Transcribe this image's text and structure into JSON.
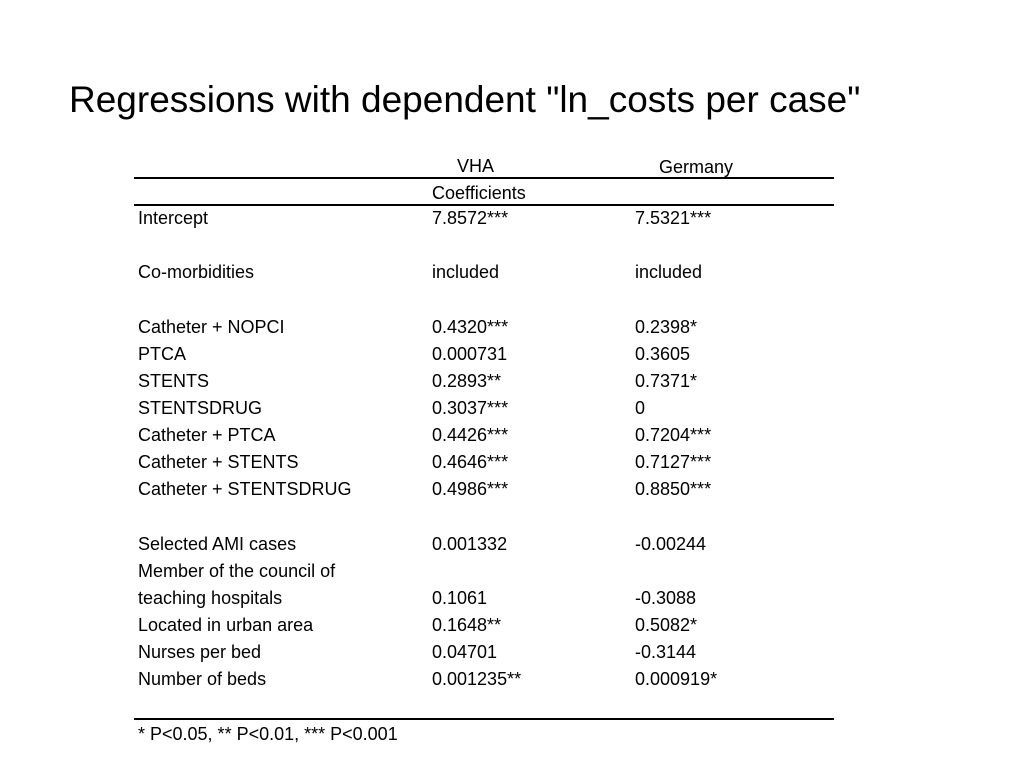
{
  "title": "Regressions with dependent \"ln_costs per case\"",
  "table": {
    "columns": {
      "vha": "VHA",
      "germany": "Germany"
    },
    "subheader": "Coefficients",
    "rows": [
      {
        "label": "Intercept",
        "vha": "7.8572***",
        "germany": "7.5321***"
      },
      {
        "label": "",
        "vha": "",
        "germany": ""
      },
      {
        "label": "Co-morbidities",
        "vha": "included",
        "germany": "included"
      },
      {
        "label": "",
        "vha": "",
        "germany": ""
      },
      {
        "label": "Catheter + NOPCI",
        "vha": "0.4320***",
        "germany": "0.2398*"
      },
      {
        "label": "PTCA",
        "vha": "0.000731",
        "germany": "0.3605"
      },
      {
        "label": "STENTS",
        "vha": "0.2893**",
        "germany": "0.7371*"
      },
      {
        "label": "STENTSDRUG",
        "vha": "0.3037***",
        "germany": "0"
      },
      {
        "label": "Catheter + PTCA",
        "vha": "0.4426***",
        "germany": "0.7204***"
      },
      {
        "label": "Catheter + STENTS",
        "vha": "0.4646***",
        "germany": "0.7127***"
      },
      {
        "label": "Catheter + STENTSDRUG",
        "vha": "0.4986***",
        "germany": "0.8850***"
      },
      {
        "label": "",
        "vha": "",
        "germany": ""
      },
      {
        "label": "Selected AMI cases",
        "vha": "0.001332",
        "germany": "-0.00244"
      },
      {
        "label": "Member of  the council of",
        "vha": "",
        "germany": ""
      },
      {
        "label": "teaching hospitals",
        "vha": "0.1061",
        "germany": "-0.3088"
      },
      {
        "label": "Located in urban area",
        "vha": "0.1648**",
        "germany": "0.5082*"
      },
      {
        "label": "Nurses per bed",
        "vha": "0.04701",
        "germany": "-0.3144"
      },
      {
        "label": "Number of beds",
        "vha": "0.001235**",
        "germany": "0.000919*"
      }
    ],
    "footnote": "* P<0.05, ** P<0.01, *** P<0.001"
  }
}
